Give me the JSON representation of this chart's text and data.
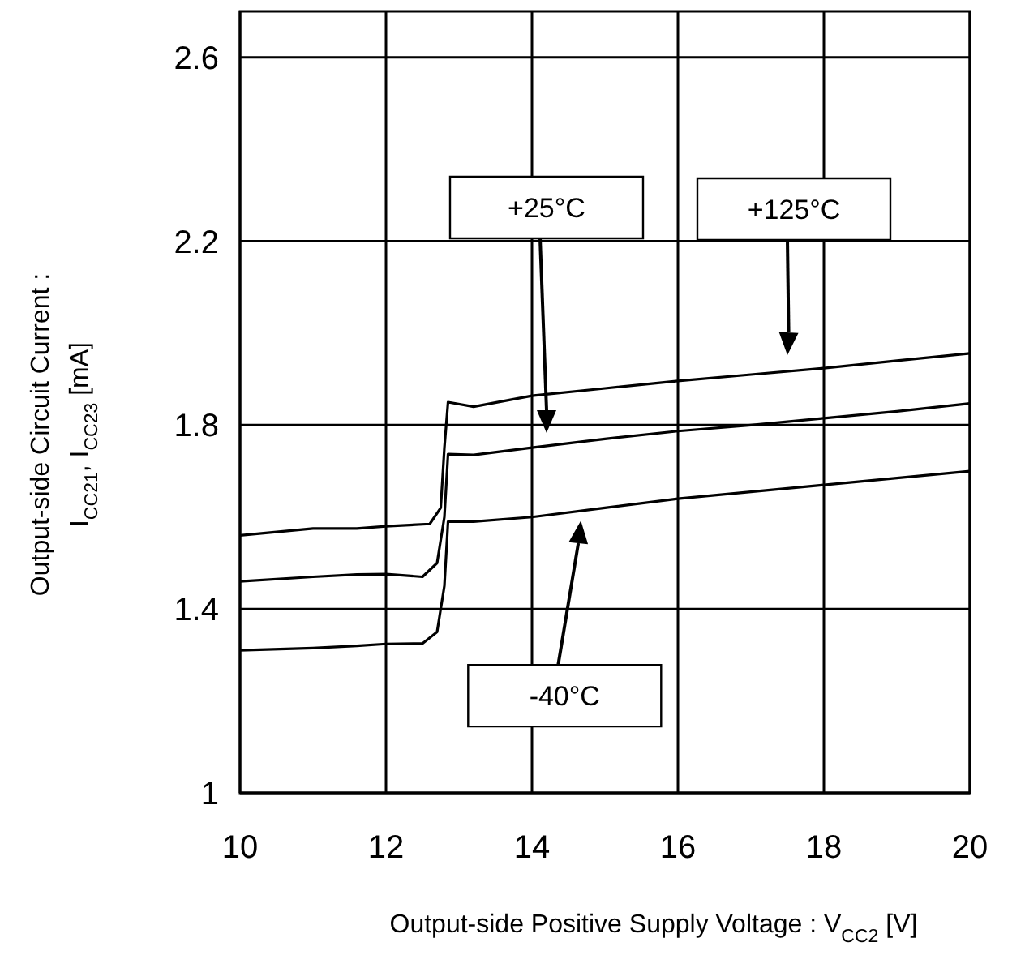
{
  "chart_data": {
    "type": "line",
    "xlabel": "Output-side Positive Supply Voltage : V$_{CC2}$ [V]",
    "ylabel": "Output-side Circuit Current :\nI$_{CC21}$, I$_{CC23}$ [mA]",
    "xlim": [
      10,
      20
    ],
    "ylim": [
      1,
      2.7
    ],
    "xticks": [
      10,
      12,
      14,
      16,
      18,
      20
    ],
    "yticks": [
      1,
      1.4,
      1.8,
      2.2,
      2.6
    ],
    "grid": true,
    "marker": "none",
    "line_style": "solid",
    "series": [
      {
        "name": "+125°C",
        "color": "#000000",
        "x": [
          10,
          11,
          11.6,
          12,
          12.6,
          12.75,
          12.8,
          12.85,
          13.2,
          14,
          15,
          16,
          17,
          18,
          19,
          20
        ],
        "values": [
          1.56,
          1.575,
          1.575,
          1.58,
          1.585,
          1.62,
          1.75,
          1.85,
          1.84,
          1.864,
          1.88,
          1.896,
          1.91,
          1.924,
          1.94,
          1.956
        ]
      },
      {
        "name": "+25°C",
        "color": "#000000",
        "x": [
          10,
          11,
          11.6,
          12,
          12.5,
          12.7,
          12.8,
          12.85,
          13.2,
          14,
          15,
          16,
          17,
          18,
          19,
          20
        ],
        "values": [
          1.46,
          1.47,
          1.475,
          1.476,
          1.47,
          1.5,
          1.6,
          1.737,
          1.735,
          1.751,
          1.77,
          1.787,
          1.8,
          1.815,
          1.83,
          1.847
        ]
      },
      {
        "name": "-40°C",
        "color": "#000000",
        "x": [
          10,
          11,
          11.6,
          12,
          12.5,
          12.7,
          12.8,
          12.85,
          13.2,
          14,
          15,
          16,
          17,
          18,
          19,
          20
        ],
        "values": [
          1.31,
          1.315,
          1.32,
          1.324,
          1.325,
          1.35,
          1.45,
          1.59,
          1.59,
          1.6,
          1.62,
          1.64,
          1.655,
          1.67,
          1.685,
          1.7
        ]
      }
    ]
  }
}
